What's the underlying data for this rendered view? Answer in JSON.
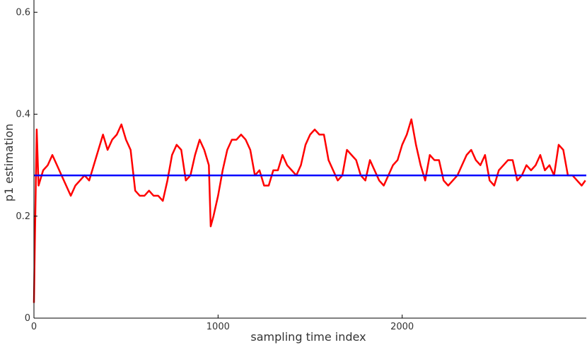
{
  "chart_data": {
    "type": "line",
    "xlabel": "sampling time index",
    "ylabel": "p1 estimation",
    "xlim": [
      0,
      3000
    ],
    "ylim": [
      0,
      0.624
    ],
    "xticks": [
      0,
      1000,
      2000
    ],
    "yticks": [
      0,
      0.2,
      0.4,
      0.6
    ],
    "series": [
      {
        "color": "#ff0000",
        "x": [
          0,
          5,
          15,
          25,
          50,
          75,
          100,
          125,
          150,
          175,
          200,
          225,
          250,
          275,
          300,
          325,
          350,
          375,
          400,
          425,
          450,
          475,
          500,
          525,
          550,
          575,
          600,
          625,
          650,
          675,
          700,
          725,
          750,
          775,
          800,
          825,
          850,
          875,
          900,
          925,
          950,
          960,
          975,
          1000,
          1025,
          1050,
          1075,
          1100,
          1125,
          1150,
          1175,
          1200,
          1225,
          1250,
          1275,
          1300,
          1325,
          1350,
          1375,
          1400,
          1425,
          1450,
          1475,
          1500,
          1525,
          1550,
          1575,
          1600,
          1625,
          1650,
          1675,
          1700,
          1725,
          1750,
          1775,
          1800,
          1825,
          1850,
          1875,
          1900,
          1925,
          1950,
          1975,
          2000,
          2025,
          2050,
          2075,
          2100,
          2125,
          2150,
          2175,
          2200,
          2225,
          2250,
          2275,
          2300,
          2325,
          2350,
          2375,
          2400,
          2425,
          2450,
          2475,
          2500,
          2525,
          2550,
          2575,
          2600,
          2625,
          2650,
          2675,
          2700,
          2725,
          2750,
          2775,
          2800,
          2825,
          2850,
          2875,
          2900,
          2925,
          2950,
          2975,
          2995
        ],
        "values": [
          0.03,
          0.15,
          0.37,
          0.26,
          0.29,
          0.3,
          0.32,
          0.3,
          0.28,
          0.26,
          0.24,
          0.26,
          0.27,
          0.28,
          0.27,
          0.3,
          0.33,
          0.36,
          0.33,
          0.35,
          0.36,
          0.38,
          0.35,
          0.33,
          0.25,
          0.24,
          0.24,
          0.25,
          0.24,
          0.24,
          0.23,
          0.27,
          0.32,
          0.34,
          0.33,
          0.27,
          0.28,
          0.32,
          0.35,
          0.33,
          0.3,
          0.18,
          0.2,
          0.24,
          0.29,
          0.33,
          0.35,
          0.35,
          0.36,
          0.35,
          0.33,
          0.28,
          0.29,
          0.26,
          0.26,
          0.29,
          0.29,
          0.32,
          0.3,
          0.29,
          0.28,
          0.3,
          0.34,
          0.36,
          0.37,
          0.36,
          0.36,
          0.31,
          0.29,
          0.27,
          0.28,
          0.33,
          0.32,
          0.31,
          0.28,
          0.27,
          0.31,
          0.29,
          0.27,
          0.26,
          0.28,
          0.3,
          0.31,
          0.34,
          0.36,
          0.39,
          0.34,
          0.3,
          0.27,
          0.32,
          0.31,
          0.31,
          0.27,
          0.26,
          0.27,
          0.28,
          0.3,
          0.32,
          0.33,
          0.31,
          0.3,
          0.32,
          0.27,
          0.26,
          0.29,
          0.3,
          0.31,
          0.31,
          0.27,
          0.28,
          0.3,
          0.29,
          0.3,
          0.32,
          0.29,
          0.3,
          0.28,
          0.34,
          0.33,
          0.28,
          0.28,
          0.27,
          0.26,
          0.27
        ]
      },
      {
        "color": "#0000ff",
        "x": [
          0,
          3000
        ],
        "values": [
          0.28,
          0.28
        ]
      }
    ]
  }
}
